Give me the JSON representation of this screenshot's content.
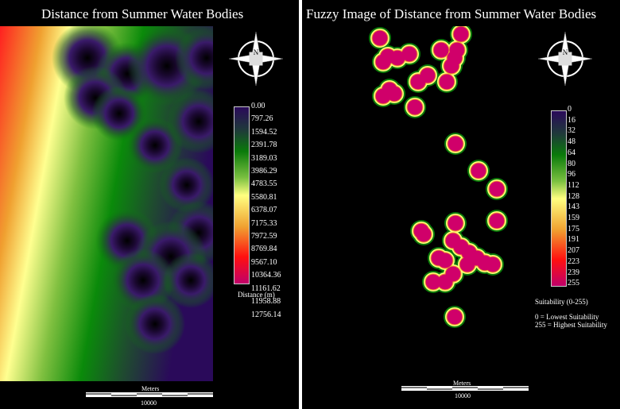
{
  "left": {
    "title": "Distance from Summer Water Bodies",
    "legend_title": "Distance (m)",
    "legend_values": [
      "0.00",
      "797.26",
      "1594.52",
      "2391.78",
      "3189.03",
      "3986.29",
      "4783.55",
      "5580.81",
      "6378.07",
      "7175.33",
      "7972.59",
      "8769.84",
      "9567.10",
      "10364.36",
      "11161.62",
      "11958.88",
      "12756.14"
    ],
    "scale_unit": "Meters",
    "scale_value": "10000",
    "compass_label": "N"
  },
  "right": {
    "title": "Fuzzy Image of Distance from Summer Water Bodies",
    "legend_title": "Suitability (0-255)",
    "legend_values": [
      "0",
      "16",
      "32",
      "48",
      "64",
      "80",
      "96",
      "112",
      "128",
      "143",
      "159",
      "175",
      "191",
      "207",
      "223",
      "239",
      "255"
    ],
    "note_low": "0 = Lowest Suitability",
    "note_high": "255 = Highest Suitability",
    "scale_unit": "Meters",
    "scale_value": "10000",
    "compass_label": "N"
  },
  "colors": {
    "ramp": [
      "#2a0a5a",
      "#1f3a3a",
      "#0a7a0a",
      "#7ac040",
      "#ffff80",
      "#f0a030",
      "#ff1010",
      "#c0006a"
    ]
  }
}
